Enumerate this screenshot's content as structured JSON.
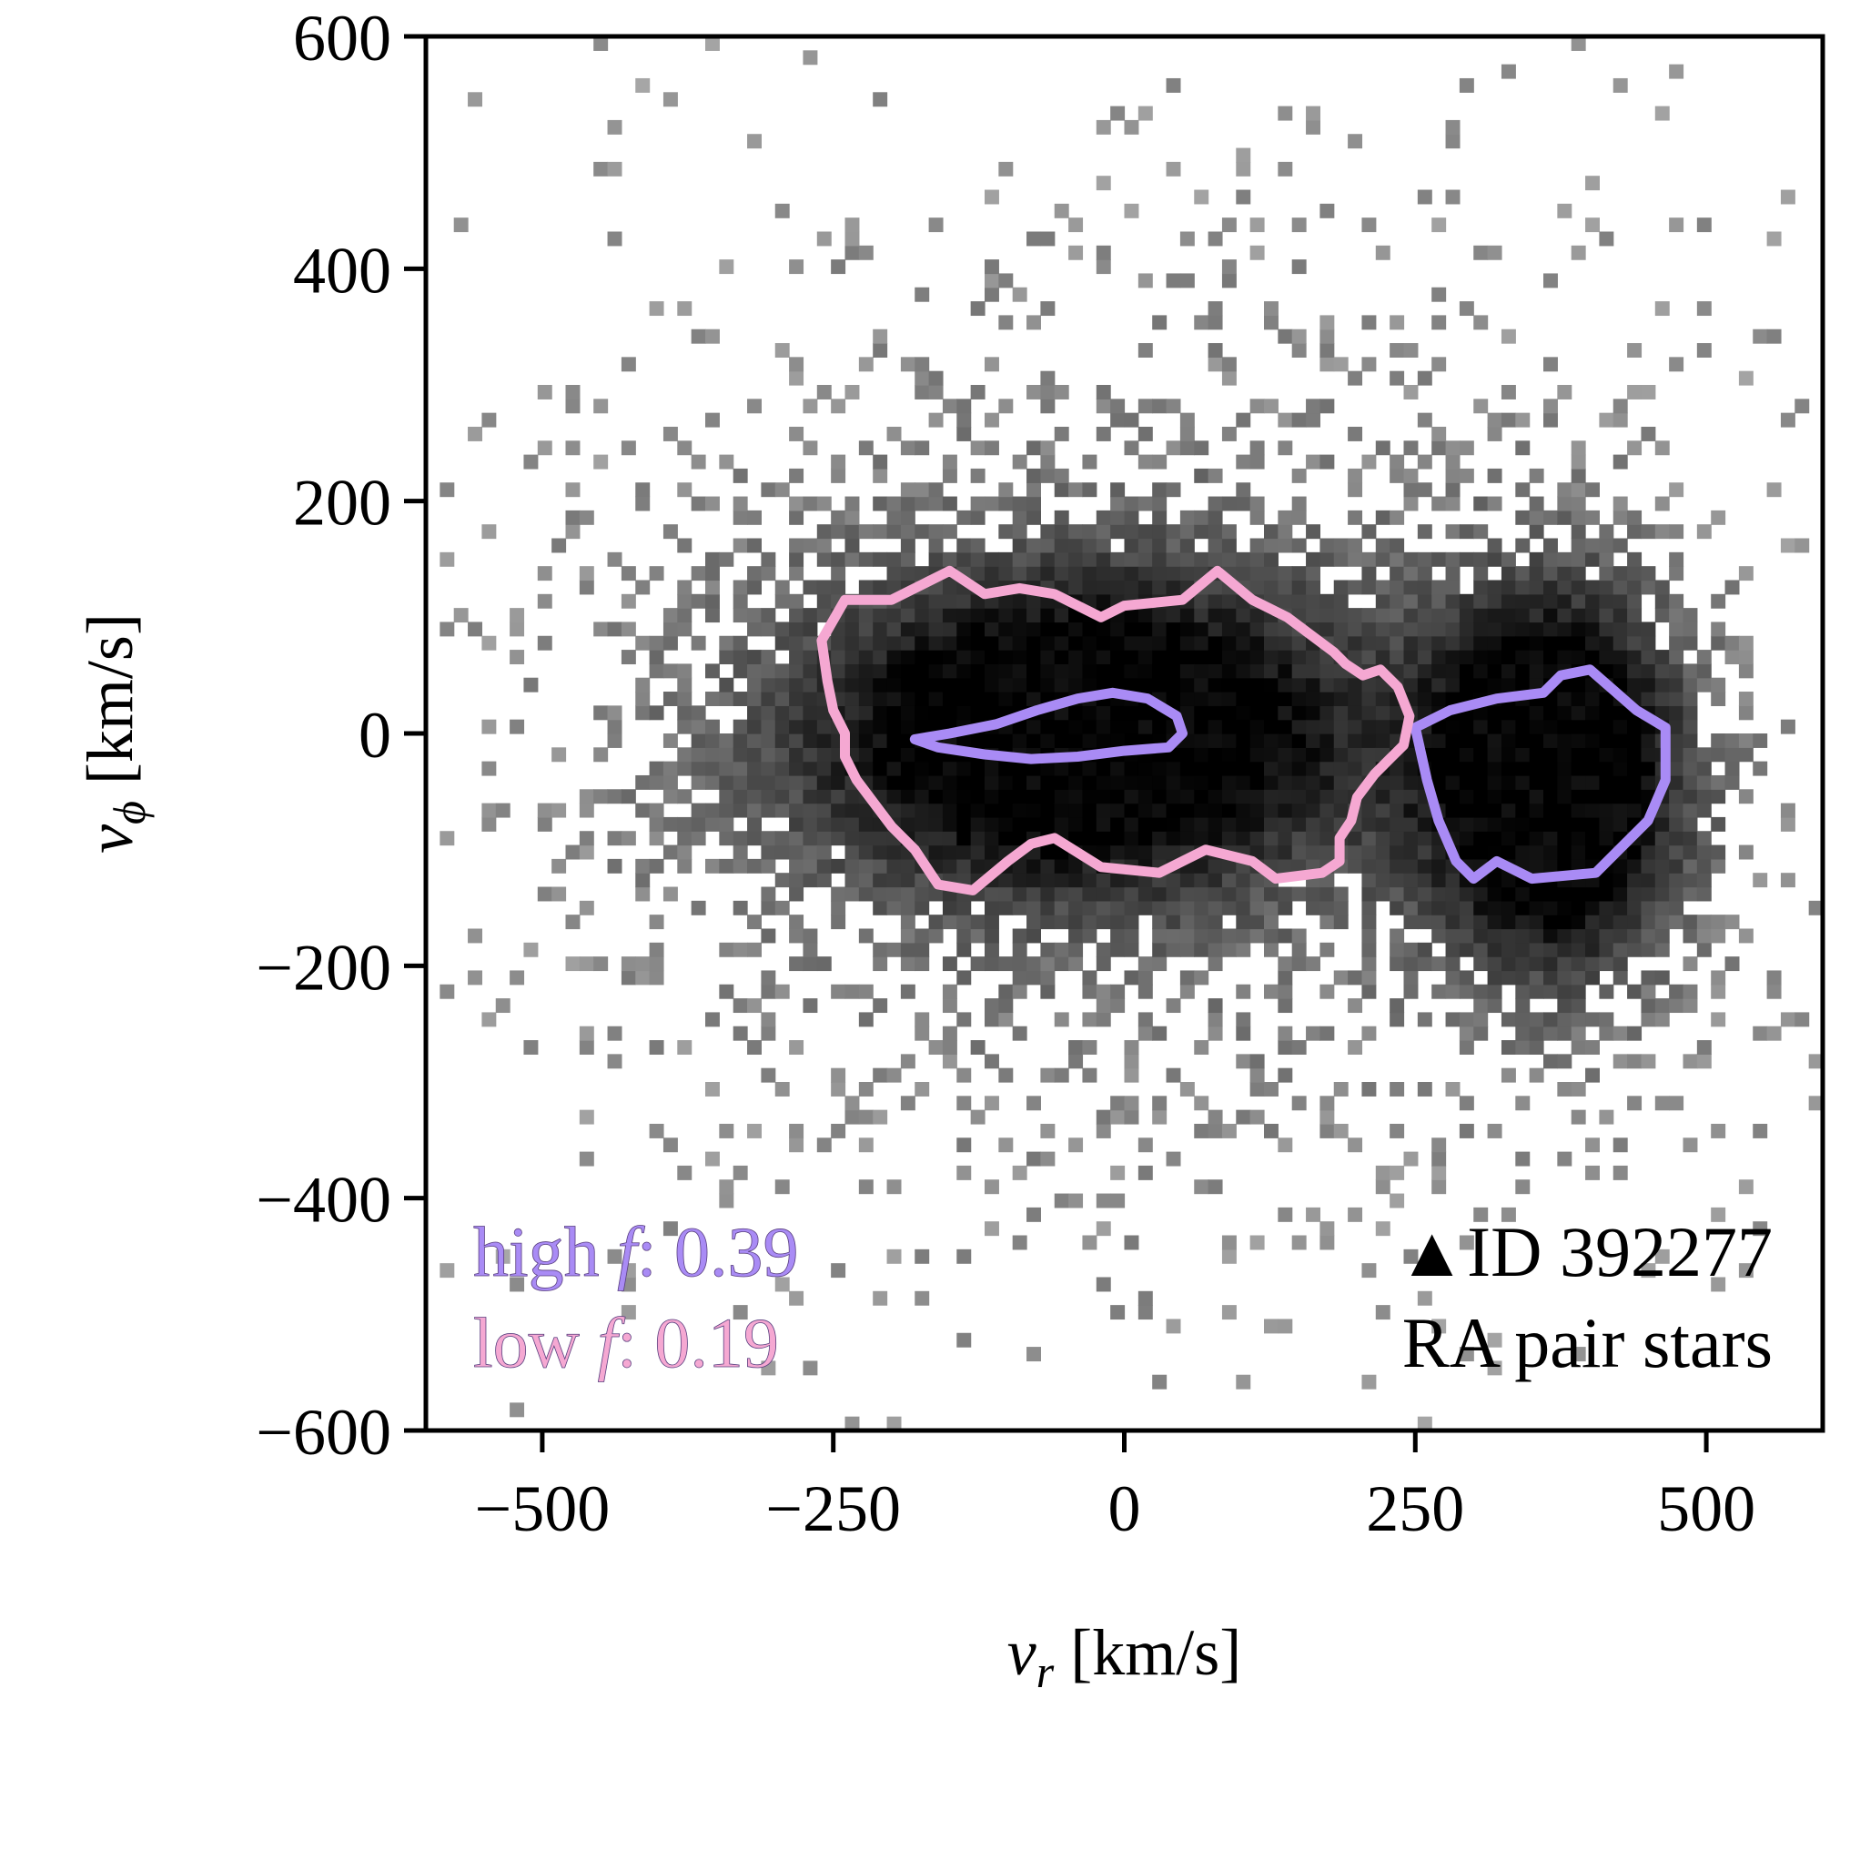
{
  "chart_data": {
    "type": "heatmap",
    "title": "",
    "xlabel": "v_r [km/s]",
    "ylabel": "v_φ [km/s]",
    "xlabel_parts": {
      "symbol": "v",
      "sub": "r",
      "unit": " [km/s]"
    },
    "ylabel_parts": {
      "symbol": "v",
      "sub": "ϕ",
      "unit": " [km/s]"
    },
    "xlim": [
      -600,
      600
    ],
    "ylim": [
      -600,
      600
    ],
    "xticks": [
      -500,
      -250,
      0,
      250,
      500
    ],
    "yticks": [
      -600,
      -400,
      -200,
      0,
      200,
      400,
      600
    ],
    "xtick_labels": [
      "−500",
      "−250",
      "0",
      "250",
      "500"
    ],
    "ytick_labels": [
      "−600",
      "−400",
      "−200",
      "0",
      "200",
      "400",
      "600"
    ],
    "grid": false,
    "colormap": "greys",
    "density_components": [
      {
        "cx": -40,
        "cy": 0,
        "sx": 170,
        "sy": 95,
        "weight": 1.0
      },
      {
        "cx": 370,
        "cy": -40,
        "sx": 75,
        "sy": 110,
        "weight": 1.2
      },
      {
        "cx": 0,
        "cy": 0,
        "sx": 320,
        "sy": 260,
        "weight": 0.18
      }
    ],
    "contours": [
      {
        "name": "high f",
        "color": "#a98bf5",
        "paths": [
          [
            [
              -180,
              -5
            ],
            [
              -150,
              0
            ],
            [
              -110,
              8
            ],
            [
              -75,
              20
            ],
            [
              -40,
              30
            ],
            [
              -10,
              35
            ],
            [
              20,
              30
            ],
            [
              45,
              15
            ],
            [
              50,
              0
            ],
            [
              38,
              -12
            ],
            [
              0,
              -15
            ],
            [
              -40,
              -20
            ],
            [
              -80,
              -22
            ],
            [
              -120,
              -18
            ],
            [
              -160,
              -12
            ],
            [
              -180,
              -5
            ]
          ],
          [
            [
              250,
              5
            ],
            [
              280,
              20
            ],
            [
              320,
              30
            ],
            [
              360,
              35
            ],
            [
              375,
              50
            ],
            [
              400,
              55
            ],
            [
              440,
              20
            ],
            [
              465,
              5
            ],
            [
              465,
              -40
            ],
            [
              450,
              -75
            ],
            [
              430,
              -95
            ],
            [
              405,
              -120
            ],
            [
              350,
              -125
            ],
            [
              320,
              -110
            ],
            [
              300,
              -125
            ],
            [
              285,
              -110
            ],
            [
              270,
              -75
            ],
            [
              260,
              -40
            ],
            [
              250,
              5
            ]
          ]
        ]
      },
      {
        "name": "low f",
        "color": "#f5a8d2",
        "paths": [
          [
            [
              -260,
              80
            ],
            [
              -240,
              115
            ],
            [
              -200,
              115
            ],
            [
              -150,
              140
            ],
            [
              -120,
              120
            ],
            [
              -90,
              125
            ],
            [
              -60,
              120
            ],
            [
              -40,
              110
            ],
            [
              -20,
              100
            ],
            [
              0,
              110
            ],
            [
              50,
              115
            ],
            [
              80,
              140
            ],
            [
              110,
              115
            ],
            [
              140,
              100
            ],
            [
              160,
              85
            ],
            [
              180,
              70
            ],
            [
              190,
              60
            ],
            [
              205,
              50
            ],
            [
              220,
              55
            ],
            [
              235,
              40
            ],
            [
              245,
              15
            ],
            [
              240,
              -10
            ],
            [
              230,
              -20
            ],
            [
              215,
              -35
            ],
            [
              200,
              -55
            ],
            [
              195,
              -75
            ],
            [
              185,
              -90
            ],
            [
              185,
              -110
            ],
            [
              170,
              -120
            ],
            [
              130,
              -125
            ],
            [
              110,
              -110
            ],
            [
              70,
              -100
            ],
            [
              30,
              -120
            ],
            [
              -20,
              -115
            ],
            [
              -60,
              -90
            ],
            [
              -80,
              -95
            ],
            [
              -100,
              -110
            ],
            [
              -130,
              -135
            ],
            [
              -160,
              -130
            ],
            [
              -180,
              -100
            ],
            [
              -200,
              -80
            ],
            [
              -230,
              -40
            ],
            [
              -240,
              -20
            ],
            [
              -240,
              0
            ],
            [
              -250,
              20
            ],
            [
              -255,
              45
            ],
            [
              -260,
              80
            ]
          ]
        ]
      }
    ],
    "annotations": [
      {
        "text": "▲ID 392277",
        "position": "bottom-right",
        "line": 1
      },
      {
        "text": "RA pair stars",
        "position": "bottom-right",
        "line": 2
      }
    ],
    "legend_position": "bottom-left",
    "legend": [
      {
        "label": "high",
        "italic": "f",
        "value": ": 0.39",
        "color": "#a98bf5"
      },
      {
        "label": "low",
        "italic": "f",
        "value": ": 0.19",
        "color": "#f5a8d2"
      }
    ]
  }
}
